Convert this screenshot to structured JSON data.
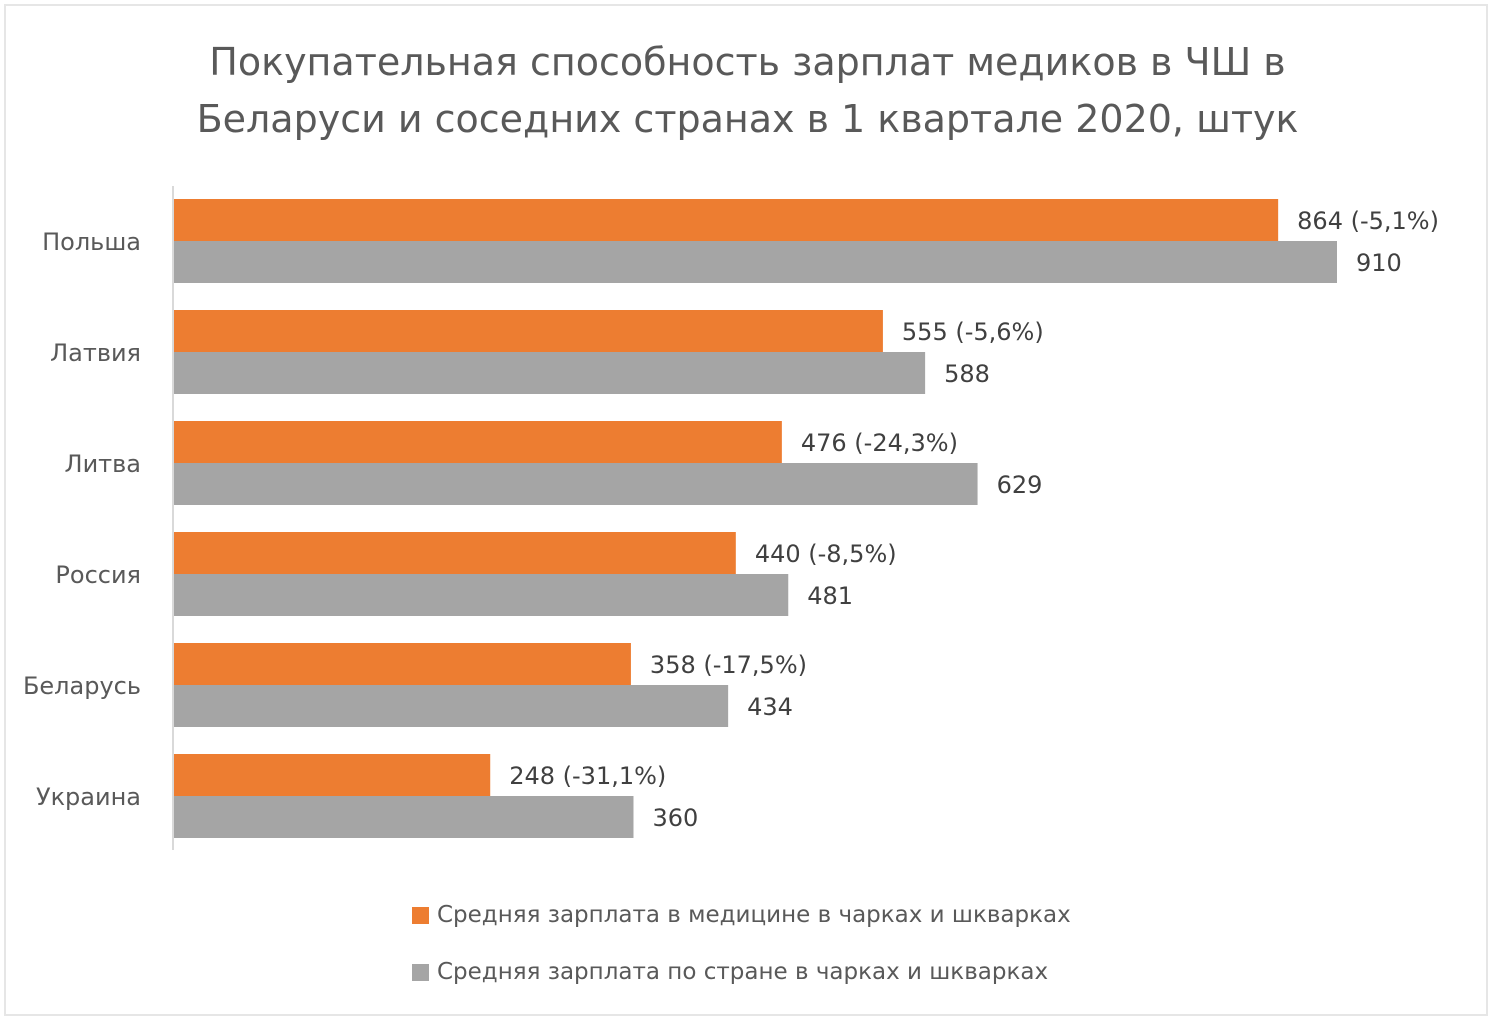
{
  "chart_data": {
    "type": "bar",
    "orientation": "horizontal",
    "title": [
      "Покупательная способность зарплат медиков в ЧШ в",
      "Беларуси и соседних странах в 1 квартале 2020, штук"
    ],
    "categories": [
      "Польша",
      "Латвия",
      "Литва",
      "Россия",
      "Беларусь",
      "Украина"
    ],
    "series": [
      {
        "name": "Средняя зарплата в медицине в чарках и шкварках",
        "color": "#ed7d31",
        "values": [
          864,
          555,
          476,
          440,
          358,
          248
        ],
        "labels": [
          "864 (-5,1%)",
          "555 (-5,6%)",
          "476 (-24,3%)",
          "440 (-8,5%)",
          "358 (-17,5%)",
          "248 (-31,1%)"
        ]
      },
      {
        "name": "Средняя зарплата по стране в чарках и шкварках",
        "color": "#a5a5a5",
        "values": [
          910,
          588,
          629,
          481,
          434,
          360
        ],
        "labels": [
          "910",
          "588",
          "629",
          "481",
          "434",
          "360"
        ]
      }
    ],
    "xlim": [
      0,
      910
    ],
    "grid": false,
    "legend_position": "bottom"
  }
}
